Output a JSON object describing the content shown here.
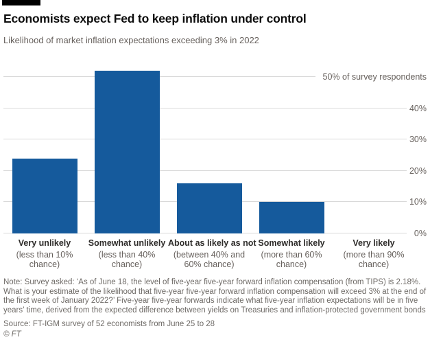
{
  "header": {
    "title": "Economists expect Fed to keep inflation under control",
    "subtitle": "Likelihood of market inflation expectations exceeding 3% in 2022"
  },
  "chart_data": {
    "type": "bar",
    "title": "Economists expect Fed to keep inflation under control",
    "subtitle": "Likelihood of market inflation expectations exceeding 3% in 2022",
    "categories": [
      {
        "label": "Very unlikely",
        "detail": "(less than 10% chance)"
      },
      {
        "label": "Somewhat unlikely",
        "detail": "(less than 40% chance)"
      },
      {
        "label": "About as likely as not",
        "detail": "(between 40% and 60% chance)"
      },
      {
        "label": "Somewhat likely",
        "detail": "(more than 60% chance)"
      },
      {
        "label": "Very likely",
        "detail": "(more than 90% chance)"
      }
    ],
    "values": [
      24,
      52,
      16,
      10,
      0
    ],
    "unit": "% of survey respondents",
    "xlabel": "",
    "ylabel": "% of survey respondents",
    "ylabel_top": "50% of survey respondents",
    "yticks": [
      0,
      10,
      20,
      30,
      40,
      50
    ],
    "ytick_labels": [
      "0%",
      "10%",
      "20%",
      "30%",
      "40%"
    ],
    "ylim": [
      0,
      53
    ],
    "grid": true,
    "legend": "none",
    "bar_color": "#155a9c",
    "gridline_color": "#d9d9d9"
  },
  "footer": {
    "note": "Note: Survey asked: ‘As of June 18, the level of five-year five-year forward inflation compensation (from TIPS) is 2.18%. What is your estimate of the likelihood that five-year five-year forward inflation compensation will exceed 3% at the end of the first week of January 2022?’ Five-year five-year forwards indicate what five-year inflation expectations will be in five years’ time, derived from the expected difference between yields on Treasuries and inflation-protected government bonds",
    "source": "Source: FT-IGM survey of 52 economists from June 25 to 28",
    "copyright": "© FT"
  }
}
